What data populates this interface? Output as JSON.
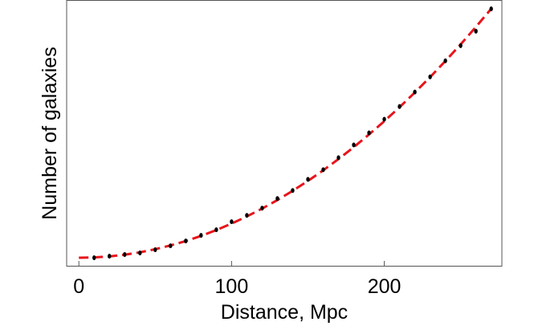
{
  "chart_data": {
    "type": "scatter",
    "xlabel": "Distance, Mpc",
    "ylabel": "Number of galaxies",
    "xlim": [
      -8,
      277
    ],
    "ylim": [
      0,
      331
    ],
    "xticks": [
      0,
      100,
      200
    ],
    "series": [
      {
        "color": "#000000",
        "x": [
          10,
          20,
          30,
          40,
          50,
          60,
          70,
          80,
          90,
          100,
          110,
          120,
          130,
          140,
          150,
          160,
          170,
          180,
          190,
          200,
          210,
          220,
          230,
          240,
          250,
          260,
          270
        ],
        "values": [
          10,
          12,
          14,
          16,
          20,
          25,
          31,
          38,
          45,
          55,
          63,
          72,
          84,
          94,
          108,
          120,
          135,
          151,
          166,
          183,
          199,
          217,
          236,
          256,
          275,
          293,
          321
        ]
      },
      {
        "color": "#e8141b",
        "style": "dashed",
        "x": [
          0,
          10,
          20,
          30,
          40,
          50,
          60,
          70,
          80,
          90,
          100,
          110,
          120,
          130,
          140,
          150,
          160,
          170,
          180,
          190,
          200,
          210,
          220,
          230,
          240,
          250,
          260,
          270
        ],
        "values": [
          10,
          10.4,
          11.7,
          13.8,
          16.8,
          20.7,
          25.4,
          30.9,
          37.3,
          44.6,
          52.7,
          61.6,
          71.4,
          82.1,
          93.6,
          106,
          119.2,
          133.3,
          148.2,
          164,
          180.6,
          198.1,
          216.5,
          235.7,
          255.7,
          276.6,
          298.4,
          321
        ]
      }
    ]
  }
}
